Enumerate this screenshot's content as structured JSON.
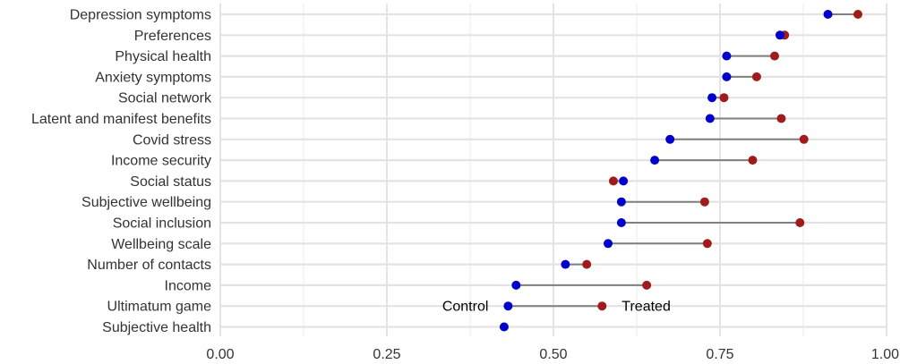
{
  "chart_data": {
    "type": "dumbbell",
    "categories": [
      "Depression symptoms",
      "Preferences",
      "Physical health",
      "Anxiety symptoms",
      "Social network",
      "Latent and manifest benefits",
      "Covid stress",
      "Income security",
      "Social status",
      "Subjective wellbeing",
      "Social inclusion",
      "Wellbeing scale",
      "Number of contacts",
      "Income",
      "Ultimatum game",
      "Subjective health"
    ],
    "series": [
      {
        "name": "Control",
        "color": "#0000cc",
        "values": [
          0.912,
          0.84,
          0.76,
          0.76,
          0.738,
          0.735,
          0.675,
          0.652,
          0.605,
          0.602,
          0.602,
          0.582,
          0.518,
          0.444,
          0.432,
          0.426
        ]
      },
      {
        "name": "Treated",
        "color": "#a01c1c",
        "values": [
          0.957,
          0.847,
          0.832,
          0.805,
          0.756,
          0.842,
          0.876,
          0.799,
          0.59,
          0.727,
          0.87,
          0.731,
          0.55,
          0.64,
          0.573,
          null
        ]
      }
    ],
    "annotations": [
      {
        "text": "Control",
        "row": "Ultimatum game"
      },
      {
        "text": "Treated",
        "row": "Ultimatum game"
      }
    ],
    "xlim": [
      0,
      1
    ],
    "xticks": [
      "0.00",
      "0.25",
      "0.50",
      "0.75",
      "1.00"
    ],
    "xlabel": "",
    "ylabel": "",
    "grid": true,
    "connector_color": "#808080"
  }
}
